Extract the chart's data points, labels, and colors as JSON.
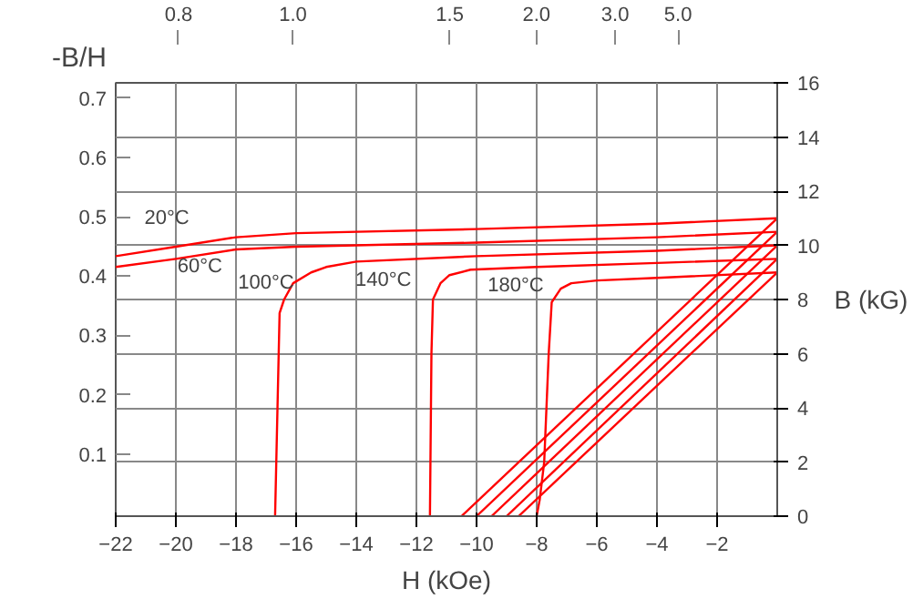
{
  "chart_data": {
    "type": "line",
    "xlabel": "H (kOe)",
    "ylabel": "B (kG)",
    "y2label": "-B/H",
    "xlim": [
      -22,
      0
    ],
    "ylim": [
      0,
      16
    ],
    "xticks": [
      -22,
      -20,
      -18,
      -16,
      -14,
      -12,
      -10,
      -8,
      -6,
      -4,
      -2
    ],
    "yticks": [
      0,
      2,
      4,
      6,
      8,
      10,
      12,
      14,
      16
    ],
    "y2lim": [
      -0.005,
      0.726
    ],
    "y2ticks": [
      0.1,
      0.2,
      0.3,
      0.4,
      0.5,
      0.6,
      0.7
    ],
    "grid": true,
    "line_style": "solid",
    "series": [
      {
        "color": "#ff0000",
        "x": [
          -22,
          -20,
          -18,
          -16,
          -10,
          -4,
          0
        ],
        "values": [
          9.6,
          9.95,
          10.3,
          10.45,
          10.6,
          10.8,
          11.0
        ]
      },
      {
        "color": "#ff0000",
        "x": [
          -22,
          -20,
          -18,
          -16,
          -10,
          -4,
          0
        ],
        "values": [
          9.2,
          9.5,
          9.85,
          9.95,
          10.1,
          10.3,
          10.5
        ]
      },
      {
        "color": "#ff0000",
        "x": [
          -16.7,
          -16.55,
          -16.4,
          -16.1,
          -15.5,
          -15.0,
          -14,
          -10,
          -4,
          0
        ],
        "values": [
          0,
          7.5,
          8.0,
          8.6,
          9.0,
          9.2,
          9.4,
          9.6,
          9.8,
          10.0
        ]
      },
      {
        "color": "#ff0000",
        "x": [
          -11.55,
          -11.5,
          -11.45,
          -11.2,
          -10.9,
          -10.2,
          -8,
          -4,
          0
        ],
        "values": [
          0,
          6.0,
          8.0,
          8.6,
          8.9,
          9.1,
          9.2,
          9.35,
          9.5
        ]
      },
      {
        "color": "#ff0000",
        "x": [
          -8.0,
          -7.9,
          -7.75,
          -7.6,
          -7.5,
          -7.2,
          -6.85,
          -6,
          -4,
          0
        ],
        "values": [
          0,
          0.6,
          2.0,
          6.0,
          7.9,
          8.4,
          8.6,
          8.7,
          8.8,
          9.0
        ]
      },
      {
        "color": "#ff0000",
        "x": [
          -10.5,
          0
        ],
        "values": [
          0,
          11.0
        ]
      },
      {
        "color": "#ff0000",
        "x": [
          -10.0,
          0
        ],
        "values": [
          0,
          10.5
        ]
      },
      {
        "color": "#ff0000",
        "x": [
          -9.5,
          0
        ],
        "values": [
          0,
          10.0
        ]
      },
      {
        "color": "#ff0000",
        "x": [
          -9.0,
          0
        ],
        "values": [
          0,
          9.5
        ]
      },
      {
        "color": "#ff0000",
        "x": [
          -8.6,
          0
        ],
        "values": [
          0,
          9.0
        ]
      }
    ],
    "annotations": [
      "20°C",
      "60°C",
      "100°C",
      "140°C",
      "180°C",
      "0.8",
      "1.0",
      "1.5",
      "2.0",
      "3.0",
      "5.0"
    ]
  }
}
